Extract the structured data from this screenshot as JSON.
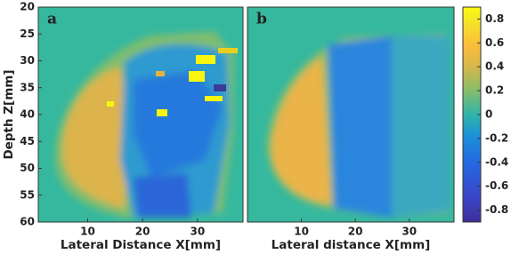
{
  "chart_data": [
    {
      "type": "heatmap",
      "label": "a",
      "xlabel": "Lateral Distance X[mm]",
      "ylabel": "Depth Z[mm]",
      "xlim": [
        1,
        38.3
      ],
      "xticks": [
        10,
        20,
        30
      ],
      "ylim": [
        20,
        60
      ],
      "yticks": [
        20,
        25,
        30,
        35,
        40,
        45,
        50,
        55,
        60
      ]
    },
    {
      "type": "heatmap",
      "label": "b",
      "xlabel": "Lateral distance X[mm]",
      "xlim": [
        0,
        38.3
      ],
      "xticks": [
        10,
        20,
        30
      ],
      "ylim": [
        20,
        60
      ]
    }
  ],
  "colorbar": {
    "zlim": [
      -0.9,
      0.9
    ],
    "zticks": [
      0.8,
      0.6,
      0.4,
      0.2,
      0,
      -0.2,
      -0.4,
      -0.6,
      -0.8
    ]
  }
}
